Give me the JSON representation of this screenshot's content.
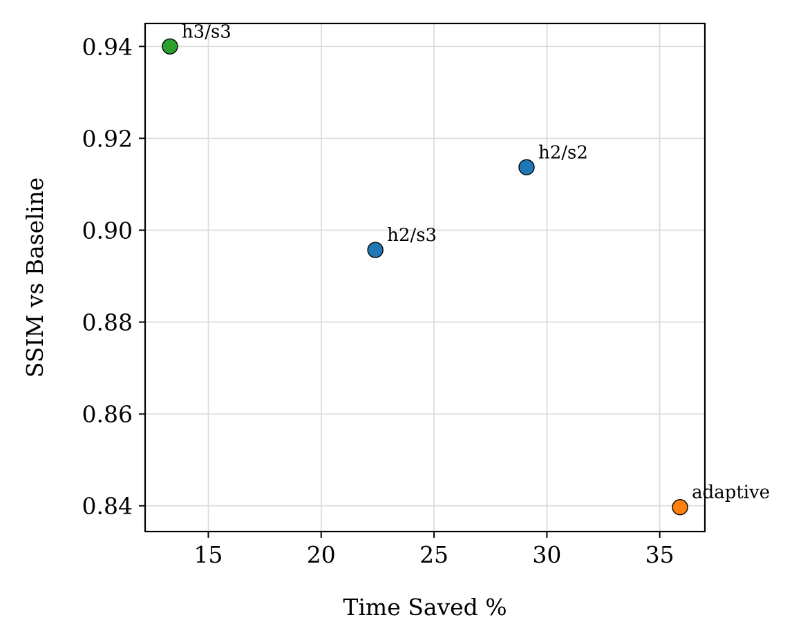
{
  "chart_data": {
    "type": "scatter",
    "title": "",
    "xlabel": "Time Saved %",
    "ylabel": "SSIM vs Baseline",
    "xlim": [
      12.2,
      37.0
    ],
    "ylim": [
      0.8344,
      0.945
    ],
    "grid": true,
    "x_ticks": [
      15,
      20,
      25,
      30,
      35
    ],
    "y_ticks": [
      0.84,
      0.86,
      0.88,
      0.9,
      0.92,
      0.94
    ],
    "x_tick_labels": [
      "15",
      "20",
      "25",
      "30",
      "35"
    ],
    "y_tick_labels": [
      "0.84",
      "0.86",
      "0.88",
      "0.90",
      "0.92",
      "0.94"
    ],
    "points": [
      {
        "label": "h3/s3",
        "x": 13.3,
        "y": 0.94,
        "color": "#2ca02c"
      },
      {
        "label": "h2/s2",
        "x": 29.1,
        "y": 0.9137,
        "color": "#1f77b4"
      },
      {
        "label": "h2/s3",
        "x": 22.4,
        "y": 0.8957,
        "color": "#1f77b4"
      },
      {
        "label": "adaptive",
        "x": 35.9,
        "y": 0.8397,
        "color": "#ff7f0e"
      }
    ]
  }
}
